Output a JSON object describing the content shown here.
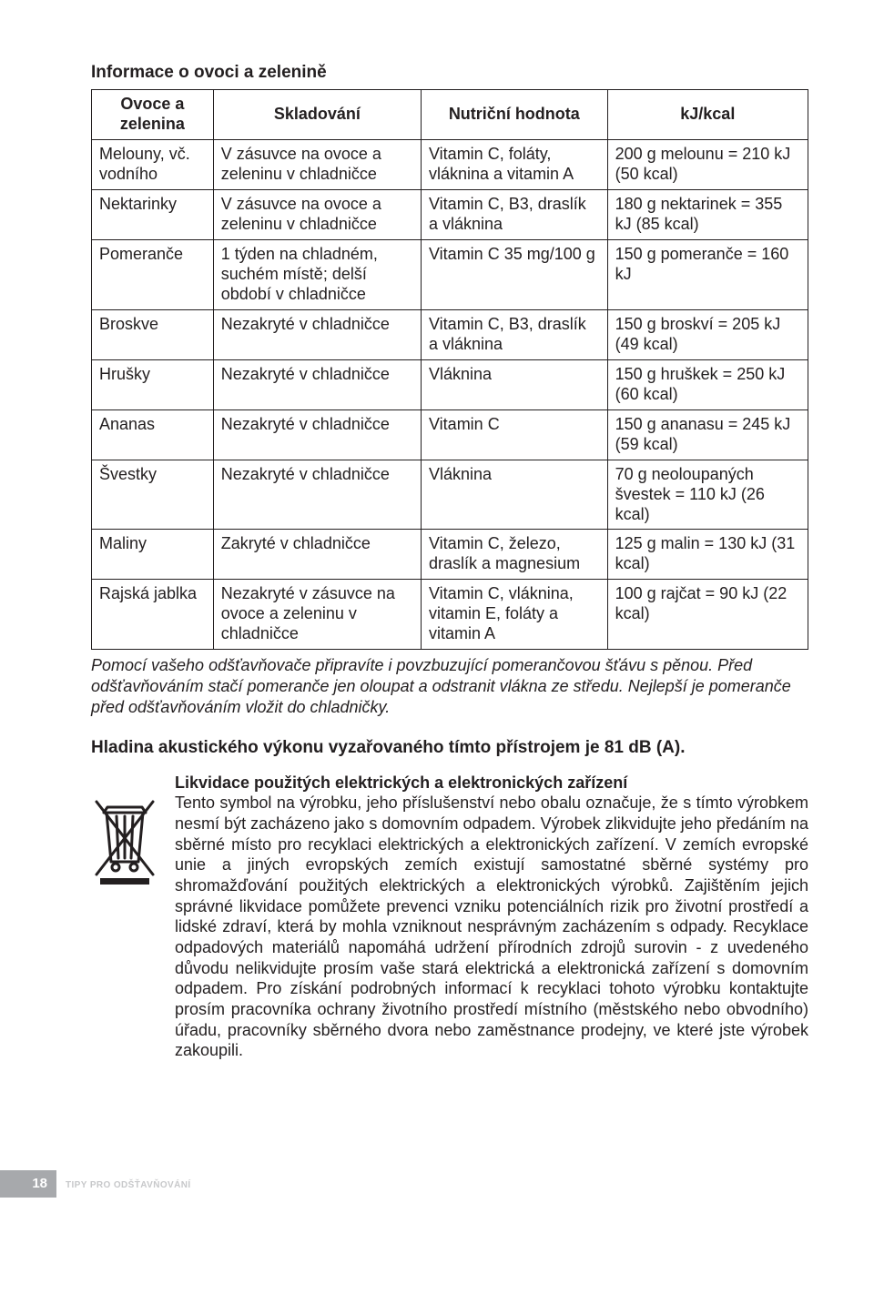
{
  "section_title": "Informace o ovoci a zelenině",
  "table": {
    "columns": [
      "Ovoce a zelenina",
      "Skladování",
      "Nutriční hodnota",
      "kJ/kcal"
    ],
    "rows": [
      [
        "Melouny, vč. vodního",
        "V zásuvce na ovoce a zeleninu v chladničce",
        "Vitamin C, foláty, vláknina a vitamin A",
        "200 g melounu = 210 kJ (50 kcal)"
      ],
      [
        "Nektarinky",
        "V zásuvce na ovoce a zeleninu v chladničce",
        "Vitamin C, B3, draslík a vláknina",
        "180 g nektarinek = 355 kJ (85 kcal)"
      ],
      [
        "Pomeranče",
        "1 týden na chladném, suchém místě; delší období v chladničce",
        "Vitamin C 35 mg/100 g",
        "150 g pomeranče = 160 kJ"
      ],
      [
        "Broskve",
        "Nezakryté v chladničce",
        "Vitamin C, B3, draslík a vláknina",
        "150 g broskví = 205 kJ (49 kcal)"
      ],
      [
        "Hrušky",
        "Nezakryté v chladničce",
        "Vláknina",
        "150 g hruškek = 250 kJ (60 kcal)"
      ],
      [
        "Ananas",
        "Nezakryté v chladničce",
        "Vitamin C",
        "150 g ananasu = 245 kJ (59 kcal)"
      ],
      [
        "Švestky",
        "Nezakryté v chladničce",
        "Vláknina",
        "70 g neoloupaných švestek = 110 kJ (26 kcal)"
      ],
      [
        "Maliny",
        "Zakryté v chladničce",
        "Vitamin C, železo, draslík a magnesium",
        "125 g malin = 130 kJ (31 kcal)"
      ],
      [
        "Rajská jablka",
        "Nezakryté v zásuvce na ovoce a zeleninu v chladničce",
        "Vitamin C, vláknina, vitamin E, foláty a vitamin A",
        "100 g rajčat = 90 kJ (22 kcal)"
      ]
    ]
  },
  "tip_note": "Pomocí vašeho odšťavňovače připravíte i povzbuzující pomerančovou šťávu s pěnou. Před odšťavňováním stačí pomeranče jen oloupat a odstranit vlákna ze středu. Nejlepší je pomeranče před odšťavňováním vložit do chladničky.",
  "noise_line": "Hladina akustického výkonu vyzařovaného tímto přístrojem je 81 dB (A).",
  "disposal_title": "Likvidace použitých elektrických a elektronických zařízení",
  "disposal_text": "Tento symbol na výrobku, jeho příslušenství nebo obalu označuje, že s tímto výrobkem nesmí být zacházeno jako s domovním odpadem. Výrobek zlikvidujte jeho předáním na sběrné místo pro recyklaci elektrických a elektronických zařízení. V zemích evropské unie a jiných evropských zemích existují samostatné sběrné systémy pro shromažďování použitých elektrických a elektronických výrobků. Zajištěním jejich správné likvidace pomůžete prevenci vzniku potenciálních rizik pro životní prostředí a lidské zdraví, která by mohla vzniknout nesprávným zacházením s odpady. Recyklace odpadových materiálů napomáhá udržení přírodních zdrojů surovin - z uvedeného důvodu nelikvidujte prosím vaše stará elektrická a elektronická zařízení s domovním odpadem. Pro získání podrobných informací k recyklaci tohoto výrobku kontaktujte prosím pracovníka ochrany životního prostředí místního (městského nebo obvodního) úřadu, pracovníky sběrného dvora nebo zaměstnance prodejny, ve které jste výrobek zakoupili.",
  "page_number": "18",
  "footer_label": "TIPY PRO ODŠŤAVŇOVÁNÍ",
  "colors": {
    "text": "#231f20",
    "border": "#231f20",
    "tab_bg": "#a7a9ac",
    "tab_fg": "#ffffff",
    "footer_label": "#c7c8ca"
  }
}
